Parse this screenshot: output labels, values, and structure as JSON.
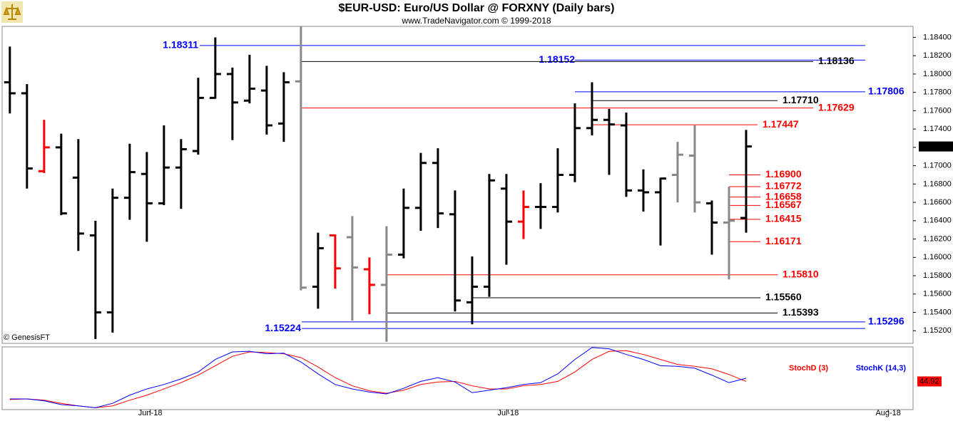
{
  "chart_data": [
    {
      "type": "ohlc",
      "title": "$EUR-USD:  Euro/US Dollar @ FORXNY  (Daily bars)",
      "subtitle": "www.TradeNavigator.com © 1999-2018",
      "credit": "© GenesisFT",
      "open": [
        1.1791,
        1.1779,
        1.1694,
        1.172,
        1.1687,
        1.1624,
        1.154,
        1.1665,
        1.1691,
        1.1659,
        1.1698,
        1.1716,
        1.1774,
        1.18,
        1.1771,
        1.1782,
        1.1746,
        1.1792,
        1.1568,
        1.1624,
        1.1622,
        1.1587,
        1.157,
        1.1603,
        1.1654,
        1.1703,
        1.1647,
        1.1551,
        1.1568,
        1.1675,
        1.1639,
        1.1655,
        1.1655,
        1.169,
        1.1741,
        1.175,
        1.1744,
        1.1673,
        1.1671,
        1.169,
        1.1711,
        1.1659,
        1.1638,
        1.1643
      ],
      "high": [
        1.183,
        1.1789,
        1.175,
        1.1735,
        1.1729,
        1.164,
        1.1675,
        1.1724,
        1.1715,
        1.1744,
        1.1729,
        1.1796,
        1.184,
        1.1807,
        1.1821,
        1.1809,
        1.1802,
        1.1852,
        1.1627,
        1.1625,
        1.1645,
        1.16,
        1.1634,
        1.1675,
        1.1714,
        1.1719,
        1.1673,
        1.1601,
        1.1691,
        1.1691,
        1.1673,
        1.1681,
        1.1719,
        1.1768,
        1.1791,
        1.1762,
        1.1758,
        1.1696,
        1.1687,
        1.1726,
        1.1744,
        1.1662,
        1.1677,
        1.1739
      ],
      "low": [
        1.1757,
        1.1675,
        1.1692,
        1.1646,
        1.1607,
        1.1511,
        1.1518,
        1.1641,
        1.1617,
        1.1657,
        1.1653,
        1.1712,
        1.1773,
        1.1728,
        1.1768,
        1.1734,
        1.1726,
        1.1564,
        1.1544,
        1.1566,
        1.1531,
        1.1538,
        1.1508,
        1.1599,
        1.1629,
        1.1632,
        1.1541,
        1.1527,
        1.1557,
        1.1592,
        1.162,
        1.1631,
        1.1649,
        1.1682,
        1.1733,
        1.169,
        1.1666,
        1.165,
        1.1613,
        1.166,
        1.1649,
        1.1603,
        1.1576,
        1.1627
      ],
      "close": [
        1.1779,
        1.1697,
        1.172,
        1.1648,
        1.1626,
        1.154,
        1.1665,
        1.1693,
        1.1659,
        1.1698,
        1.1718,
        1.1774,
        1.18,
        1.1769,
        1.1784,
        1.1744,
        1.1791,
        1.1567,
        1.161,
        1.1588,
        1.1589,
        1.157,
        1.1603,
        1.1654,
        1.1703,
        1.1648,
        1.1553,
        1.1568,
        1.1684,
        1.1639,
        1.1655,
        1.1655,
        1.169,
        1.1741,
        1.175,
        1.1745,
        1.1673,
        1.1671,
        1.1686,
        1.1712,
        1.166,
        1.1638,
        1.164,
        1.1721
      ],
      "colors": [
        "#000000",
        "#000000",
        "#ff0000",
        "#000000",
        "#000000",
        "#000000",
        "#000000",
        "#000000",
        "#000000",
        "#000000",
        "#000000",
        "#000000",
        "#000000",
        "#000000",
        "#000000",
        "#000000",
        "#000000",
        "#888888",
        "#000000",
        "#ff0000",
        "#888888",
        "#ff0000",
        "#888888",
        "#000000",
        "#000000",
        "#000000",
        "#000000",
        "#000000",
        "#000000",
        "#000000",
        "#ff0000",
        "#000000",
        "#000000",
        "#000000",
        "#000000",
        "#000000",
        "#000000",
        "#000000",
        "#000000",
        "#888888",
        "#888888",
        "#000000",
        "#888888",
        "#000000"
      ],
      "xlim": [
        -0.45,
        52.75
      ],
      "xticks": [
        {
          "value": 8.2,
          "label": "Jun-18"
        },
        {
          "value": 29.1,
          "label": "Jul-18"
        },
        {
          "value": 51.3,
          "label": "Aug-18"
        }
      ],
      "ylim": [
        1.1507,
        1.1852
      ],
      "yticks": [
        {
          "value": 1.152,
          "label": "1.15200"
        },
        {
          "value": 1.154,
          "label": "1.15400"
        },
        {
          "value": 1.156,
          "label": "1.15600"
        },
        {
          "value": 1.158,
          "label": "1.15800"
        },
        {
          "value": 1.16,
          "label": "1.16000"
        },
        {
          "value": 1.162,
          "label": "1.16200"
        },
        {
          "value": 1.164,
          "label": "1.16400"
        },
        {
          "value": 1.166,
          "label": "1.16600"
        },
        {
          "value": 1.168,
          "label": "1.16800"
        },
        {
          "value": 1.17,
          "label": "1.17000"
        },
        {
          "value": 1.172,
          "label": "1.17200"
        },
        {
          "value": 1.174,
          "label": "1.17400"
        },
        {
          "value": 1.176,
          "label": "1.17600"
        },
        {
          "value": 1.178,
          "label": "1.17800"
        },
        {
          "value": 1.18,
          "label": "1.18000"
        },
        {
          "value": 1.182,
          "label": "1.18200"
        },
        {
          "value": 1.184,
          "label": "1.18400"
        }
      ],
      "last_price": {
        "value": 1.1721,
        "label": "1.17210"
      },
      "levels": [
        {
          "value": 1.18311,
          "label": "1.18311",
          "color": "#0000ff"
        },
        {
          "value": 1.18152,
          "label": "1.18152",
          "color": "#0000ff"
        },
        {
          "value": 1.18136,
          "label": "1.18136",
          "color": "#000000"
        },
        {
          "value": 1.17806,
          "label": "1.17806",
          "color": "#0000ff"
        },
        {
          "value": 1.1771,
          "label": "1.17710",
          "color": "#000000"
        },
        {
          "value": 1.17629,
          "label": "1.17629",
          "color": "#ff0000"
        },
        {
          "value": 1.17447,
          "label": "1.17447",
          "color": "#ff0000"
        },
        {
          "value": 1.169,
          "label": "1.16900",
          "color": "#ff0000"
        },
        {
          "value": 1.16772,
          "label": "1.16772",
          "color": "#ff0000"
        },
        {
          "value": 1.16658,
          "label": "1.16658",
          "color": "#ff0000"
        },
        {
          "value": 1.16567,
          "label": "1.16567",
          "color": "#ff0000"
        },
        {
          "value": 1.16415,
          "label": "1.16415",
          "color": "#ff0000"
        },
        {
          "value": 1.16171,
          "label": "1.16171",
          "color": "#ff0000"
        },
        {
          "value": 1.1581,
          "label": "1.15810",
          "color": "#ff0000"
        },
        {
          "value": 1.1556,
          "label": "1.15560",
          "color": "#000000"
        },
        {
          "value": 1.15393,
          "label": "1.15393",
          "color": "#000000"
        },
        {
          "value": 1.15296,
          "label": "1.15296",
          "color": "#0000ff"
        },
        {
          "value": 1.15224,
          "label": "1.15224",
          "color": "#0000ff"
        }
      ]
    },
    {
      "type": "line",
      "ylim": [
        0,
        100
      ],
      "series": [
        {
          "name": "StochD (3)",
          "color": "#ff0000",
          "values": [
            16,
            17,
            15,
            10,
            6,
            3,
            6,
            15,
            23,
            33,
            43,
            55,
            70,
            85,
            92,
            91,
            89,
            83,
            68,
            51,
            38,
            30,
            26,
            31,
            40,
            44,
            45,
            38,
            33,
            33,
            38,
            40,
            45,
            60,
            80,
            93,
            94,
            88,
            80,
            72,
            69,
            65,
            56,
            44.92
          ]
        },
        {
          "name": "StochK (14,3)",
          "color": "#0000ff",
          "values": [
            17,
            17,
            14,
            8,
            6,
            3,
            10,
            23,
            33,
            40,
            49,
            60,
            80,
            92,
            93,
            89,
            90,
            76,
            57,
            40,
            33,
            28,
            25,
            34,
            45,
            51,
            44,
            27,
            31,
            35,
            40,
            43,
            57,
            80,
            99,
            97,
            88,
            80,
            70,
            69,
            66,
            55,
            43,
            50
          ]
        }
      ],
      "last_value": {
        "value": 44.92,
        "label": "44.92"
      }
    }
  ]
}
